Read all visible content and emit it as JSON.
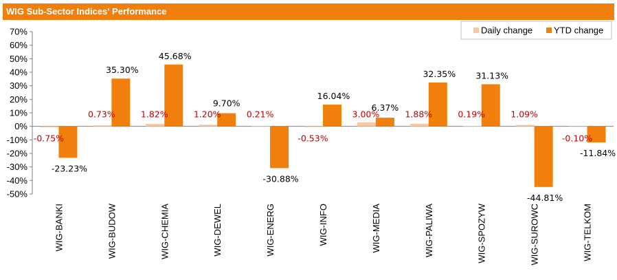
{
  "title": "WIG Sub-Sector Indices' Performance",
  "colors": {
    "title_bg": "#f07f0b",
    "daily": "#f9c7a0",
    "ytd": "#f07f0b",
    "daily_label": "#c00000",
    "ytd_label": "#000000",
    "axis": "#7f7f7f"
  },
  "chart_data": {
    "type": "bar",
    "title": "WIG Sub-Sector Indices' Performance",
    "categories": [
      "WIG-BANKI",
      "WIG-BUDOW",
      "WIG-CHEMIA",
      "WIG-DEWEL",
      "WIG-ENERG",
      "WIG-INFO",
      "WIG-MEDIA",
      "WIG-PALIWA",
      "WIG-SPOZYW",
      "WIG-SUROWC",
      "WIG-TELKOM"
    ],
    "series": [
      {
        "name": "Daily change",
        "values": [
          -0.75,
          0.73,
          1.82,
          1.2,
          0.21,
          -0.53,
          3.0,
          1.88,
          0.19,
          1.09,
          -0.1
        ],
        "labels": [
          "-0.75%",
          "0.73%",
          "1.82%",
          "1.20%",
          "0.21%",
          "-0.53%",
          "3.00%",
          "1.88%",
          "0.19%",
          "1.09%",
          "-0.10%"
        ]
      },
      {
        "name": "YTD change",
        "values": [
          -23.23,
          35.3,
          45.68,
          9.7,
          -30.88,
          16.04,
          6.37,
          32.35,
          31.13,
          -44.81,
          -11.84
        ],
        "labels": [
          "-23.23%",
          "35.30%",
          "45.68%",
          "9.70%",
          "-30.88%",
          "16.04%",
          "6.37%",
          "32.35%",
          "31.13%",
          "-44.81%",
          "-11.84%"
        ]
      }
    ],
    "ylim": [
      -50,
      70
    ],
    "yticks": [
      70,
      60,
      50,
      40,
      30,
      20,
      10,
      0,
      -10,
      -20,
      -30,
      -40,
      -50
    ],
    "ytick_labels": [
      "70%",
      "60%",
      "50%",
      "40%",
      "30%",
      "20%",
      "10%",
      "0%",
      "-10%",
      "-20%",
      "-30%",
      "-40%",
      "-50%"
    ],
    "legend_position": "top-right",
    "grid": false
  }
}
